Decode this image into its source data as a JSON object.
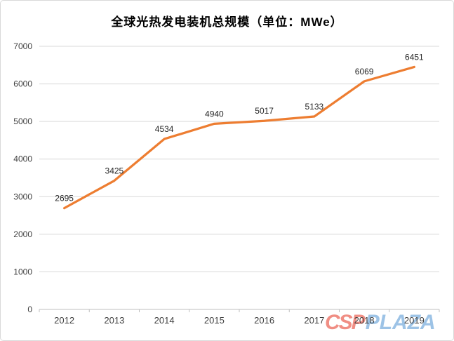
{
  "header": {
    "title": "全球光热发电装机总规模（单位：MWe）"
  },
  "chart_data": {
    "type": "line",
    "title": "全球光热发电装机总规模（单位：MWe）",
    "categories": [
      "2012",
      "2013",
      "2014",
      "2015",
      "2016",
      "2017",
      "2018",
      "2019"
    ],
    "values": [
      2695,
      3425,
      4534,
      4940,
      5017,
      5133,
      6069,
      6451
    ],
    "xlabel": "",
    "ylabel": "",
    "ylim": [
      0,
      7000
    ],
    "ytick_interval": 1000,
    "yticks": [
      0,
      1000,
      2000,
      3000,
      4000,
      5000,
      6000,
      7000
    ],
    "grid": true,
    "legend_position": "none",
    "data_labels": true
  },
  "watermark": {
    "part1": "CSP",
    "part2": "PLAZA"
  },
  "colors": {
    "line": "#ED7D31",
    "gridline": "#D9D9D9",
    "axis_line": "#BFBFBF",
    "axis_text": "#404040",
    "label_text": "#262626",
    "title_text": "#000000",
    "watermark_csp": "#EE7B6F",
    "watermark_plaza": "#9DC3E6",
    "frame_border": "#D9D9D9",
    "background": "#FFFFFF"
  }
}
